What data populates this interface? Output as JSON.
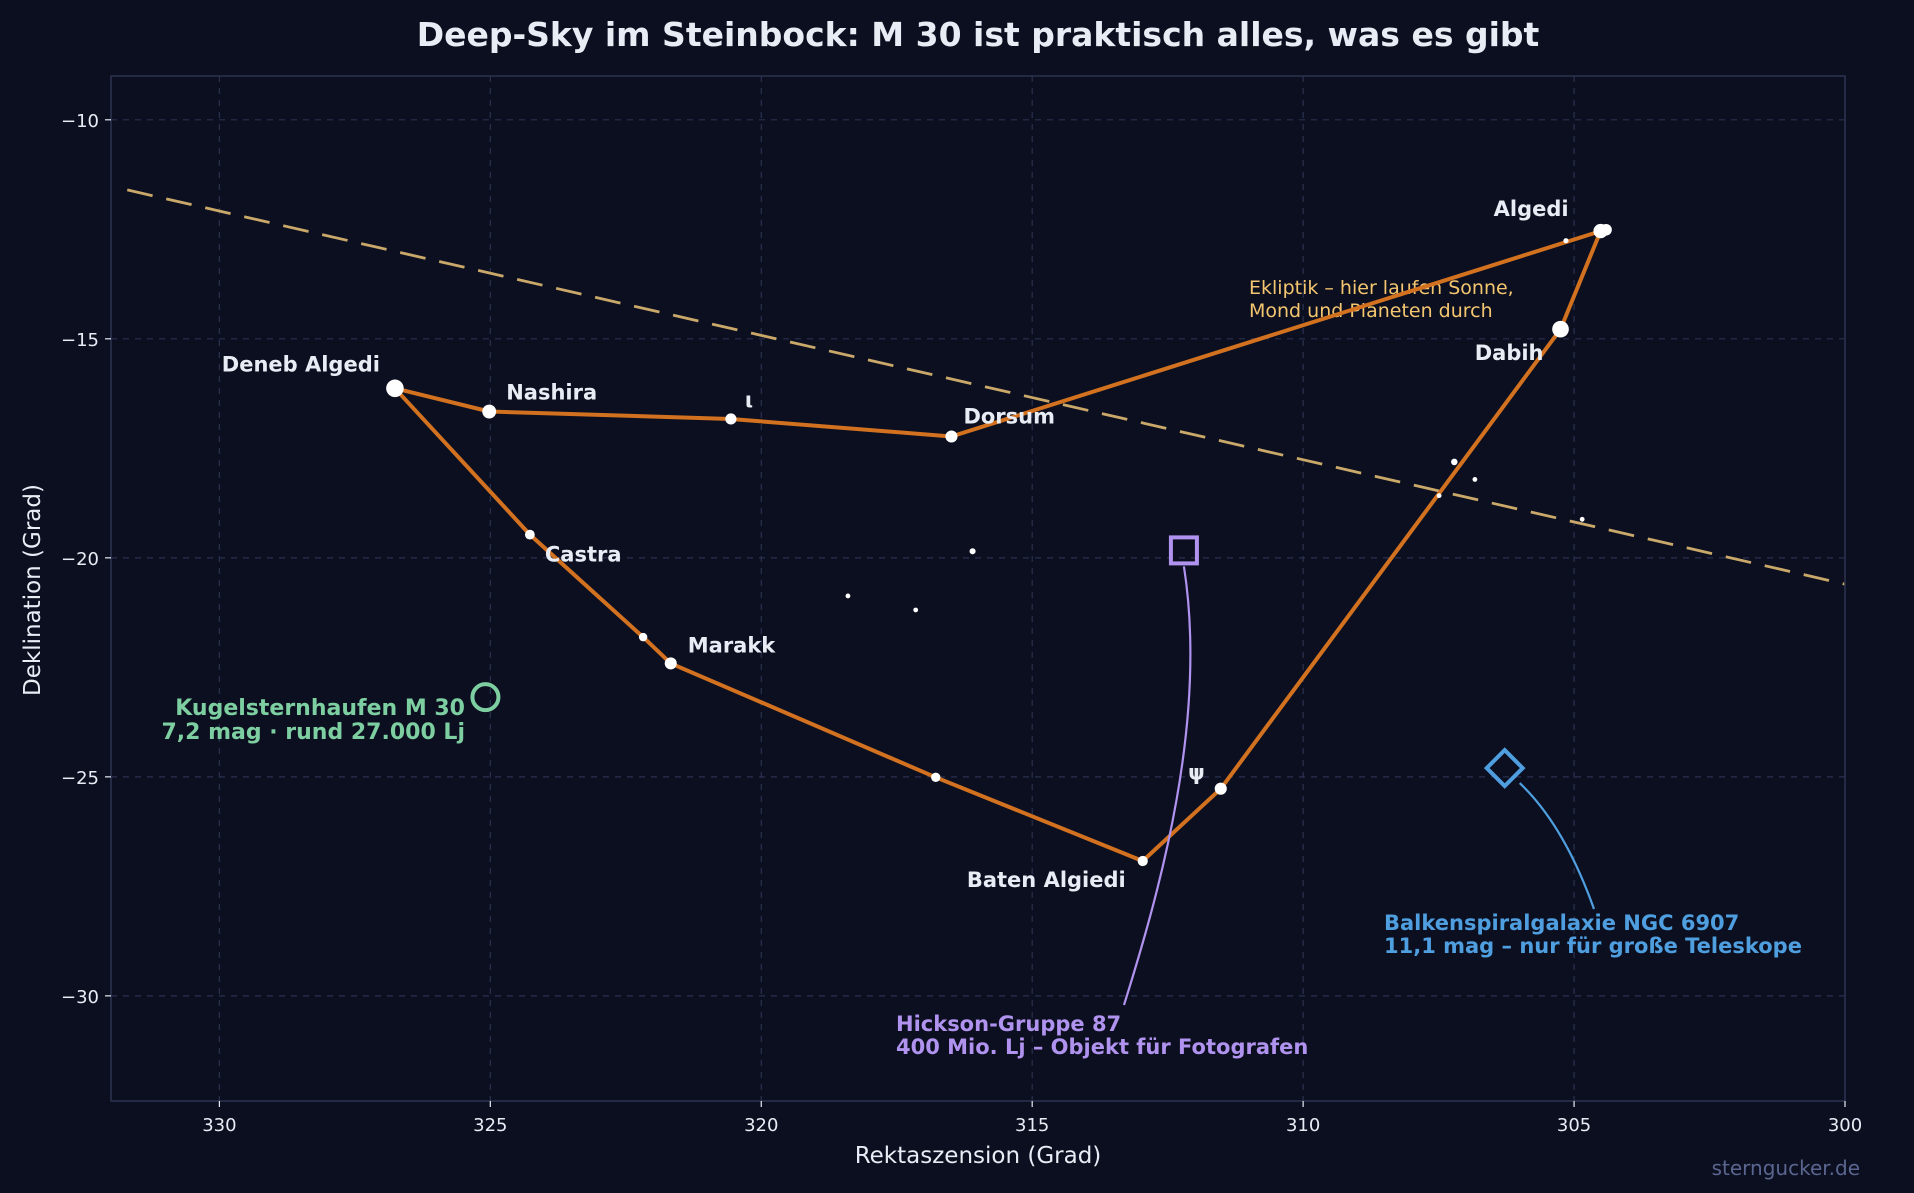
{
  "chart_data": {
    "type": "scatter",
    "title": "Deep-Sky im Steinbock: M 30 ist praktisch alles, was es gibt",
    "xlabel": "Rektaszension (Grad)",
    "ylabel": "Deklination (Grad)",
    "xlim": [
      332,
      300
    ],
    "ylim": [
      -32.4,
      -9
    ],
    "x_ticks": [
      330,
      325,
      320,
      315,
      310,
      305,
      300
    ],
    "y_ticks": [
      -10,
      -15,
      -20,
      -25,
      -30
    ],
    "x_ticklabels": [
      "330",
      "325",
      "320",
      "315",
      "310",
      "305",
      "300"
    ],
    "y_ticklabels": [
      "−10",
      "−15",
      "−20",
      "−25",
      "−30"
    ],
    "grid": true,
    "watermark": "sterngucker.de",
    "colors": {
      "background": "#0b0f1f",
      "figure": "#0b0f1f",
      "axes_frame": "#2c3350",
      "grid": "#2a3150",
      "text": "#e8ecf5",
      "constellation_line": "#d2711f",
      "ecliptic": "#c9a86a",
      "ecliptic_label": "#f4c670",
      "globular": "#7dcea0",
      "hickson": "#b092ef",
      "galaxy": "#4f9fe0",
      "watermark": "#5a6690"
    },
    "stars": [
      {
        "ra": 326.76,
        "dec": -16.13,
        "mag": 2.9,
        "label": "Deneb Algedi"
      },
      {
        "ra": 325.02,
        "dec": -16.66,
        "mag": 3.7,
        "label": "Nashira"
      },
      {
        "ra": 320.56,
        "dec": -16.83,
        "mag": 4.3,
        "label": "ι"
      },
      {
        "ra": 316.49,
        "dec": -17.23,
        "mag": 4.1,
        "label": "Dorsum"
      },
      {
        "ra": 305.25,
        "dec": -14.78,
        "mag": 3.1,
        "label": "Dabih"
      },
      {
        "ra": 304.51,
        "dec": -12.54,
        "mag": 3.6,
        "label": "Algedi"
      },
      {
        "ra": 304.41,
        "dec": -12.51,
        "mag": 4.2,
        "label": ""
      },
      {
        "ra": 324.27,
        "dec": -19.47,
        "mag": 4.6,
        "label": "Castra"
      },
      {
        "ra": 322.18,
        "dec": -21.81,
        "mag": 4.9,
        "label": ""
      },
      {
        "ra": 321.67,
        "dec": -22.41,
        "mag": 4.1,
        "label": "Marakk"
      },
      {
        "ra": 316.78,
        "dec": -25.01,
        "mag": 4.7,
        "label": ""
      },
      {
        "ra": 312.96,
        "dec": -26.92,
        "mag": 4.5,
        "label": "Baten Algiedi"
      },
      {
        "ra": 311.52,
        "dec": -25.27,
        "mag": 4.1,
        "label": "ψ"
      },
      {
        "ra": 305.15,
        "dec": -12.76,
        "mag": 5.6,
        "label": ""
      },
      {
        "ra": 307.21,
        "dec": -17.81,
        "mag": 5.3,
        "label": ""
      },
      {
        "ra": 306.83,
        "dec": -18.21,
        "mag": 5.8,
        "label": ""
      },
      {
        "ra": 307.49,
        "dec": -18.58,
        "mag": 6.0,
        "label": ""
      },
      {
        "ra": 304.85,
        "dec": -19.12,
        "mag": 6.0,
        "label": ""
      },
      {
        "ra": 316.1,
        "dec": -19.85,
        "mag": 5.4,
        "label": ""
      },
      {
        "ra": 318.4,
        "dec": -20.87,
        "mag": 5.8,
        "label": ""
      },
      {
        "ra": 317.15,
        "dec": -21.19,
        "mag": 6.0,
        "label": ""
      }
    ],
    "constellation_lines": [
      [
        [
          326.76,
          -16.13
        ],
        [
          325.02,
          -16.66
        ],
        [
          320.56,
          -16.83
        ],
        [
          316.49,
          -17.23
        ],
        [
          304.51,
          -12.54
        ],
        [
          305.25,
          -14.78
        ],
        [
          311.52,
          -25.27
        ],
        [
          312.96,
          -26.92
        ],
        [
          316.78,
          -25.01
        ],
        [
          321.67,
          -22.41
        ],
        [
          322.18,
          -21.81
        ],
        [
          324.27,
          -19.47
        ],
        [
          326.76,
          -16.13
        ]
      ]
    ],
    "ecliptic": {
      "points": [
        [
          331.7,
          -11.6
        ],
        [
          300.0,
          -20.6
        ]
      ],
      "label": [
        "Ekliptik – hier laufen Sonne,",
        "Mond und Planeten durch"
      ]
    },
    "deep_sky": [
      {
        "kind": "globular",
        "ra": 325.09,
        "dec": -23.18,
        "label": [
          "Kugelsternhaufen M 30",
          "7,2 mag · rund 27.000 Lj"
        ]
      },
      {
        "kind": "hickson",
        "ra": 312.2,
        "dec": -19.83,
        "label": [
          "Hickson-Gruppe 87",
          "400 Mio. Lj – Objekt für Fotografen"
        ]
      },
      {
        "kind": "galaxy",
        "ra": 306.28,
        "dec": -24.8,
        "label": [
          "Balkenspiralgalaxie NGC 6907",
          "11,1 mag – nur für große Teleskope"
        ]
      }
    ]
  }
}
